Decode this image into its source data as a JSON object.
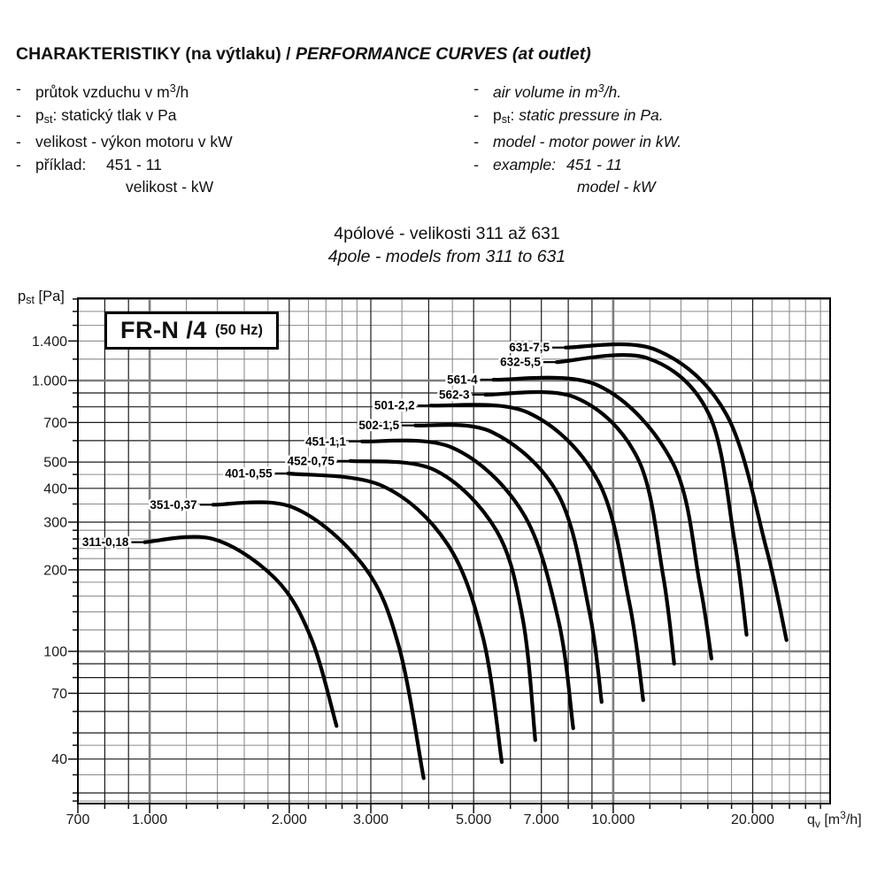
{
  "header": {
    "title_cz": "CHARAKTERISTIKY (na výtlaku) / ",
    "title_en": "PERFORMANCE CURVES (at outlet)"
  },
  "legend_cz": {
    "items": [
      {
        "bullet": true,
        "seg": [
          {
            "t": "průtok vzduchu v m"
          },
          {
            "t": "3",
            "v": "sup"
          },
          {
            "t": "/h"
          }
        ]
      },
      {
        "bullet": true,
        "seg": [
          {
            "t": "p"
          },
          {
            "t": "st",
            "v": "sub"
          },
          {
            "t": ": statický tlak v Pa"
          }
        ]
      },
      {
        "bullet": true,
        "seg": [
          {
            "t": "velikost - výkon motoru v kW"
          }
        ]
      },
      {
        "bullet": true,
        "seg": [
          {
            "t": "příklad:",
            "w": 80
          },
          {
            "t": "451 - 11"
          }
        ]
      },
      {
        "bullet": false,
        "indent": 102,
        "seg": [
          {
            "t": "velikost - kW"
          }
        ]
      }
    ]
  },
  "legend_en": {
    "items": [
      {
        "bullet": true,
        "seg": [
          {
            "t": "air volume in m"
          },
          {
            "t": "3",
            "v": "sup"
          },
          {
            "t": "/h."
          }
        ]
      },
      {
        "bullet": true,
        "seg": [
          {
            "t": "p",
            "up": true
          },
          {
            "t": "st",
            "v": "sub",
            "up": true
          },
          {
            "t": ": ",
            "up": true
          },
          {
            "t": "static pressure in Pa."
          }
        ]
      },
      {
        "bullet": true,
        "seg": [
          {
            "t": "model - motor power in kW."
          }
        ]
      },
      {
        "bullet": true,
        "seg": [
          {
            "t": "example:",
            "w": 83
          },
          {
            "t": "451 - 11"
          }
        ]
      },
      {
        "bullet": false,
        "indent": 95,
        "seg": [
          {
            "t": "model - kW"
          }
        ]
      }
    ]
  },
  "subtitle": {
    "line1": "4pólové - velikosti 311 až 631",
    "line2": "4pole - models from 311 to 631"
  },
  "chart_data": {
    "type": "line",
    "title_box": {
      "main": "FR-N /4",
      "suffix": "(50 Hz)"
    },
    "grid": "log-log minor+major",
    "grid_mantissas": [
      1,
      1.2,
      1.4,
      1.6,
      1.8,
      2,
      2.2,
      2.4,
      2.6,
      2.8,
      3,
      3.5,
      4,
      4.5,
      5,
      6,
      7,
      8,
      9
    ],
    "x_axis": {
      "scale": "log",
      "range": [
        700,
        29380
      ],
      "ticks": [
        700,
        1000,
        2000,
        3000,
        5000,
        7000,
        10000,
        20000
      ],
      "tick_labels": [
        "700",
        "1.000",
        "2.000",
        "3.000",
        "5.000",
        "7.000",
        "10.000",
        "20.000"
      ],
      "title_seg": [
        {
          "t": "q"
        },
        {
          "t": "v",
          "v": "sub"
        },
        {
          "t": " [m"
        },
        {
          "t": "3",
          "v": "sup"
        },
        {
          "t": "/h]"
        }
      ]
    },
    "y_axis": {
      "scale": "log",
      "range": [
        27.4,
        2014
      ],
      "ticks": [
        40,
        70,
        100,
        200,
        300,
        400,
        500,
        700,
        1000,
        1400
      ],
      "tick_labels": [
        "40",
        "70",
        "100",
        "200",
        "300",
        "400",
        "500",
        "700",
        "1.000",
        "1.400"
      ],
      "title_seg": [
        {
          "t": "p"
        },
        {
          "t": "st",
          "v": "sub"
        },
        {
          "t": " [Pa]"
        }
      ]
    },
    "series": [
      {
        "name": "311-0,18",
        "points": [
          [
            975,
            253
          ],
          [
            1370,
            260
          ],
          [
            1870,
            185
          ],
          [
            2230,
            112
          ],
          [
            2530,
            53
          ]
        ]
      },
      {
        "name": "351-0,37",
        "points": [
          [
            1370,
            348
          ],
          [
            2040,
            340
          ],
          [
            2900,
            206
          ],
          [
            3450,
            104
          ],
          [
            3900,
            34
          ]
        ]
      },
      {
        "name": "401-0,55",
        "points": [
          [
            1990,
            454
          ],
          [
            3160,
            410
          ],
          [
            4390,
            249
          ],
          [
            5240,
            112
          ],
          [
            5750,
            39
          ]
        ]
      },
      {
        "name": "452-0,75",
        "points": [
          [
            2710,
            505
          ],
          [
            4110,
            468
          ],
          [
            5600,
            279
          ],
          [
            6390,
            130
          ],
          [
            6790,
            47
          ]
        ]
      },
      {
        "name": "451-1,1",
        "points": [
          [
            2870,
            596
          ],
          [
            4500,
            565
          ],
          [
            6390,
            324
          ],
          [
            7620,
            130
          ],
          [
            8200,
            52
          ]
        ]
      },
      {
        "name": "502-1,5",
        "points": [
          [
            3740,
            683
          ],
          [
            5480,
            645
          ],
          [
            7620,
            378
          ],
          [
            8880,
            141
          ],
          [
            9440,
            65
          ]
        ]
      },
      {
        "name": "501-2,2",
        "points": [
          [
            4040,
            809
          ],
          [
            6540,
            762
          ],
          [
            9290,
            424
          ],
          [
            10830,
            152
          ],
          [
            11610,
            66
          ]
        ]
      },
      {
        "name": "562-3",
        "points": [
          [
            5300,
            887
          ],
          [
            8300,
            865
          ],
          [
            11320,
            512
          ],
          [
            12810,
            191
          ],
          [
            13540,
            90
          ]
        ]
      },
      {
        "name": "561-4",
        "points": [
          [
            5520,
            1008
          ],
          [
            9290,
            958
          ],
          [
            13480,
            492
          ],
          [
            15380,
            177
          ],
          [
            16290,
            94
          ]
        ]
      },
      {
        "name": "632-5,5",
        "points": [
          [
            7550,
            1170
          ],
          [
            11850,
            1210
          ],
          [
            16100,
            750
          ],
          [
            18250,
            259
          ],
          [
            19400,
            115
          ]
        ]
      },
      {
        "name": "631-7,5",
        "points": [
          [
            7890,
            1324
          ],
          [
            12350,
            1300
          ],
          [
            17550,
            750
          ],
          [
            21400,
            240
          ],
          [
            23660,
            110
          ]
        ]
      }
    ]
  }
}
